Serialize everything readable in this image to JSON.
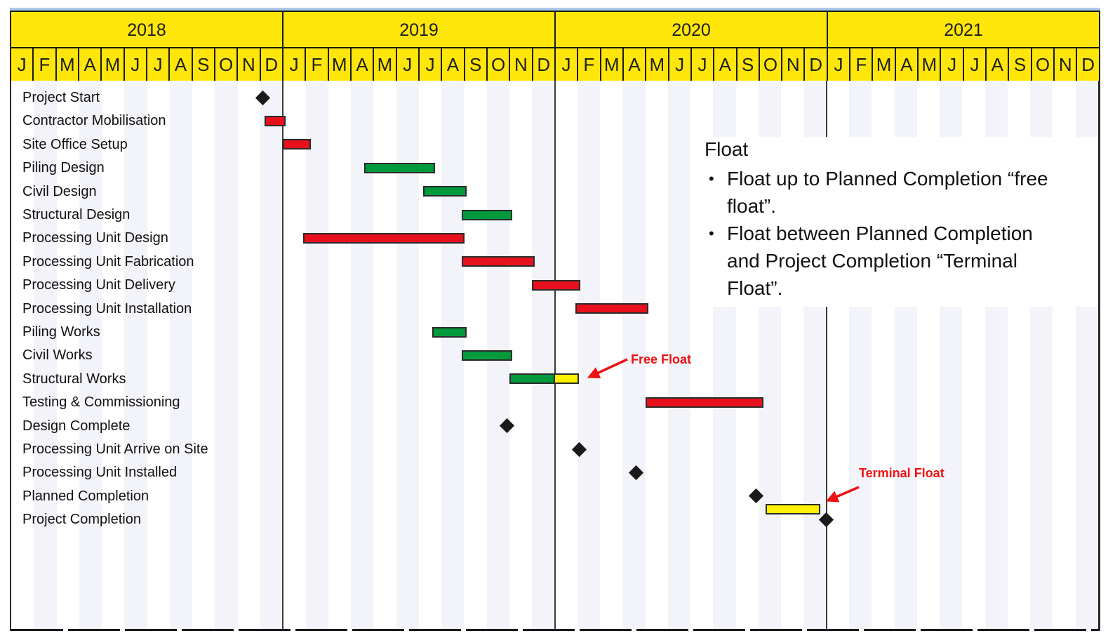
{
  "colors": {
    "top_line_blue": "#a9c7e9",
    "header_fill": "#ffe60a",
    "stripe": "#f3f3fa",
    "bars": {
      "red": "#e8101c",
      "green": "#009a3c",
      "yellow": "#fff200"
    },
    "bar_border": "#2b2b2b",
    "milestone": "#1a1a1a",
    "callout_red": "#ee1111"
  },
  "chart_data": {
    "type": "gantt",
    "time_unit": "months_since_jan_2018",
    "timeline_months": 48,
    "years": [
      "2018",
      "2019",
      "2020",
      "2021"
    ],
    "month_letters": [
      "J",
      "F",
      "M",
      "A",
      "M",
      "J",
      "J",
      "A",
      "S",
      "O",
      "N",
      "D"
    ],
    "year_separators": [
      12,
      24,
      36
    ],
    "tasks": [
      {
        "label": "Project Start",
        "milestone": 11.1
      },
      {
        "label": "Contractor Mobilisation",
        "bar": {
          "start": 11.2,
          "end": 12.0,
          "color": "red"
        }
      },
      {
        "label": "Site Office Setup",
        "bar": {
          "start": 12.0,
          "end": 13.1,
          "color": "red"
        }
      },
      {
        "label": "Piling Design",
        "bar": {
          "start": 15.6,
          "end": 18.6,
          "color": "green"
        }
      },
      {
        "label": "Civil Design",
        "bar": {
          "start": 18.2,
          "end": 20.0,
          "color": "green"
        }
      },
      {
        "label": "Structural Design",
        "bar": {
          "start": 19.9,
          "end": 22.0,
          "color": "green"
        }
      },
      {
        "label": "Processing Unit Design",
        "bar": {
          "start": 12.9,
          "end": 19.9,
          "color": "red"
        }
      },
      {
        "label": "Processing Unit Fabrication",
        "bar": {
          "start": 19.9,
          "end": 23.0,
          "color": "red"
        }
      },
      {
        "label": "Processing Unit Delivery",
        "bar": {
          "start": 23.0,
          "end": 25.0,
          "color": "red"
        }
      },
      {
        "label": "Processing Unit Installation",
        "bar": {
          "start": 24.9,
          "end": 28.0,
          "color": "red"
        }
      },
      {
        "label": "Piling Works",
        "bar": {
          "start": 18.6,
          "end": 20.0,
          "color": "green"
        }
      },
      {
        "label": "Civil Works",
        "bar": {
          "start": 19.9,
          "end": 22.0,
          "color": "green"
        }
      },
      {
        "label": "Structural Works",
        "bar": {
          "start": 22.0,
          "end": 24.0,
          "color": "green"
        },
        "float": {
          "name": "free-float-bar",
          "start": 24.0,
          "end": 25.0,
          "color": "yellow",
          "row_offset": 0
        }
      },
      {
        "label": "Testing & Commissioning",
        "bar": {
          "start": 28.0,
          "end": 33.1,
          "color": "red"
        }
      },
      {
        "label": "Design Complete",
        "milestone": 21.9
      },
      {
        "label": "Processing Unit Arrive on Site",
        "milestone": 25.1
      },
      {
        "label": "Processing Unit Installed",
        "milestone": 27.6
      },
      {
        "label": "Planned Completion",
        "milestone": 32.9
      },
      {
        "label": "Project Completion",
        "milestone": 36.0,
        "float": {
          "name": "terminal-float-bar",
          "start": 33.3,
          "end": 35.6,
          "color": "yellow",
          "row_offset": -0.43
        }
      }
    ]
  },
  "annotations": {
    "float_note_title": "Float",
    "bullet_char": "•",
    "float_note_bullets": [
      "Float up to Planned Completion “free float”.",
      "Float between Planned Completion and Project Completion “Terminal Float”."
    ],
    "free_float_label": "Free Float",
    "terminal_float_label": "Terminal Float"
  }
}
